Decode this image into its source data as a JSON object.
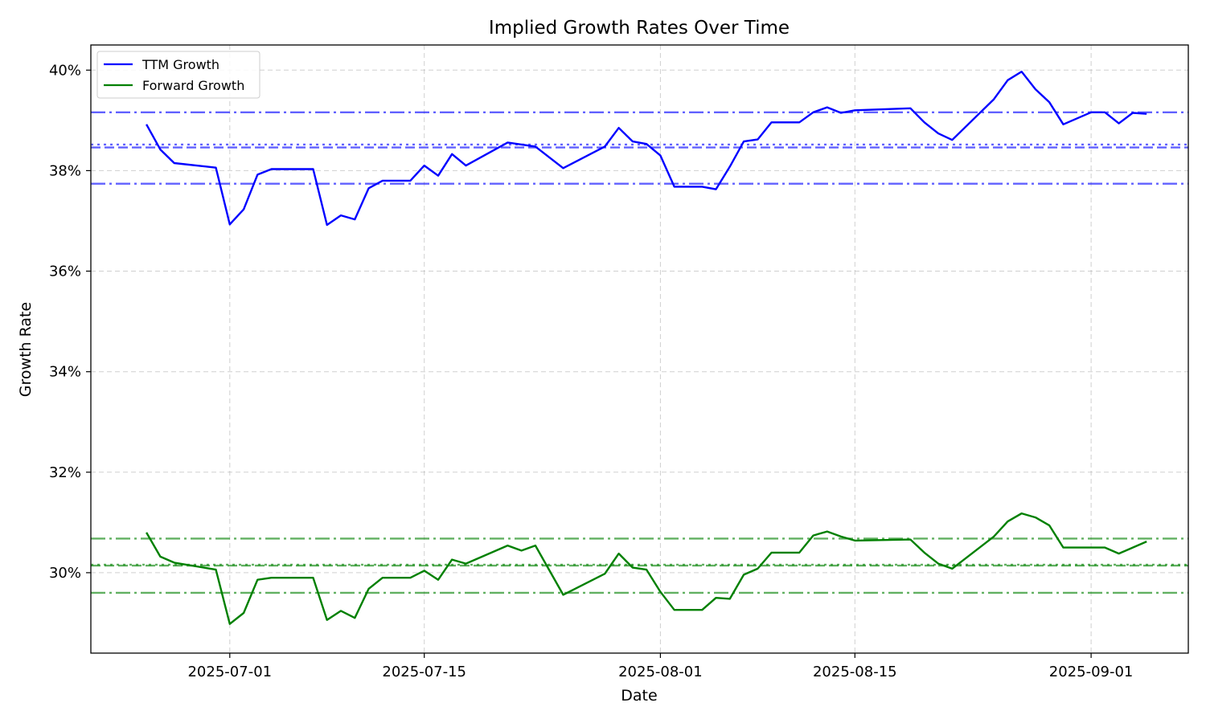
{
  "chart_data": {
    "type": "line",
    "title": "Implied Growth Rates Over Time",
    "xlabel": "Date",
    "ylabel": "Growth Rate",
    "xlim": [
      "2025-06-21",
      "2025-09-08"
    ],
    "ylim": [
      28.4,
      40.5
    ],
    "x_ticks": [
      "2025-07-01",
      "2025-07-15",
      "2025-08-01",
      "2025-08-15",
      "2025-09-01"
    ],
    "y_ticks": [
      30,
      32,
      34,
      36,
      38,
      40
    ],
    "y_tick_labels": [
      "30%",
      "32%",
      "34%",
      "36%",
      "38%",
      "40%"
    ],
    "grid": true,
    "legend_position": "top-left",
    "series": [
      {
        "name": "TTM Growth",
        "color": "#0000ff",
        "points": [
          [
            "2025-06-25",
            38.92
          ],
          [
            "2025-06-26",
            38.42
          ],
          [
            "2025-06-27",
            38.15
          ],
          [
            "2025-06-30",
            38.06
          ],
          [
            "2025-07-01",
            36.93
          ],
          [
            "2025-07-02",
            37.23
          ],
          [
            "2025-07-03",
            37.92
          ],
          [
            "2025-07-04",
            38.03
          ],
          [
            "2025-07-07",
            38.03
          ],
          [
            "2025-07-08",
            36.92
          ],
          [
            "2025-07-09",
            37.11
          ],
          [
            "2025-07-10",
            37.03
          ],
          [
            "2025-07-11",
            37.65
          ],
          [
            "2025-07-12",
            37.8
          ],
          [
            "2025-07-14",
            37.8
          ],
          [
            "2025-07-15",
            38.1
          ],
          [
            "2025-07-16",
            37.9
          ],
          [
            "2025-07-17",
            38.33
          ],
          [
            "2025-07-18",
            38.1
          ],
          [
            "2025-07-21",
            38.56
          ],
          [
            "2025-07-22",
            38.52
          ],
          [
            "2025-07-23",
            38.48
          ],
          [
            "2025-07-25",
            38.05
          ],
          [
            "2025-07-28",
            38.48
          ],
          [
            "2025-07-29",
            38.85
          ],
          [
            "2025-07-30",
            38.58
          ],
          [
            "2025-07-31",
            38.53
          ],
          [
            "2025-08-01",
            38.3
          ],
          [
            "2025-08-02",
            37.68
          ],
          [
            "2025-08-04",
            37.68
          ],
          [
            "2025-08-05",
            37.63
          ],
          [
            "2025-08-06",
            38.08
          ],
          [
            "2025-08-07",
            38.58
          ],
          [
            "2025-08-08",
            38.62
          ],
          [
            "2025-08-09",
            38.96
          ],
          [
            "2025-08-11",
            38.96
          ],
          [
            "2025-08-12",
            39.16
          ],
          [
            "2025-08-13",
            39.26
          ],
          [
            "2025-08-14",
            39.15
          ],
          [
            "2025-08-15",
            39.2
          ],
          [
            "2025-08-19",
            39.24
          ],
          [
            "2025-08-20",
            38.96
          ],
          [
            "2025-08-21",
            38.74
          ],
          [
            "2025-08-22",
            38.61
          ],
          [
            "2025-08-25",
            39.42
          ],
          [
            "2025-08-26",
            39.8
          ],
          [
            "2025-08-27",
            39.97
          ],
          [
            "2025-08-28",
            39.62
          ],
          [
            "2025-08-29",
            39.36
          ],
          [
            "2025-08-30",
            38.92
          ],
          [
            "2025-09-01",
            39.16
          ],
          [
            "2025-09-02",
            39.16
          ],
          [
            "2025-09-03",
            38.94
          ],
          [
            "2025-09-04",
            39.15
          ],
          [
            "2025-09-05",
            39.13
          ]
        ]
      },
      {
        "name": "Forward Growth",
        "color": "#008000",
        "points": [
          [
            "2025-06-25",
            30.8
          ],
          [
            "2025-06-26",
            30.32
          ],
          [
            "2025-06-27",
            30.2
          ],
          [
            "2025-06-30",
            30.06
          ],
          [
            "2025-07-01",
            28.98
          ],
          [
            "2025-07-02",
            29.2
          ],
          [
            "2025-07-03",
            29.86
          ],
          [
            "2025-07-04",
            29.9
          ],
          [
            "2025-07-07",
            29.9
          ],
          [
            "2025-07-08",
            29.06
          ],
          [
            "2025-07-09",
            29.24
          ],
          [
            "2025-07-10",
            29.1
          ],
          [
            "2025-07-11",
            29.68
          ],
          [
            "2025-07-12",
            29.9
          ],
          [
            "2025-07-14",
            29.9
          ],
          [
            "2025-07-15",
            30.04
          ],
          [
            "2025-07-16",
            29.86
          ],
          [
            "2025-07-17",
            30.26
          ],
          [
            "2025-07-18",
            30.18
          ],
          [
            "2025-07-21",
            30.54
          ],
          [
            "2025-07-22",
            30.44
          ],
          [
            "2025-07-23",
            30.54
          ],
          [
            "2025-07-25",
            29.56
          ],
          [
            "2025-07-28",
            29.98
          ],
          [
            "2025-07-29",
            30.38
          ],
          [
            "2025-07-30",
            30.1
          ],
          [
            "2025-07-31",
            30.06
          ],
          [
            "2025-08-01",
            29.62
          ],
          [
            "2025-08-02",
            29.26
          ],
          [
            "2025-08-04",
            29.26
          ],
          [
            "2025-08-05",
            29.5
          ],
          [
            "2025-08-06",
            29.48
          ],
          [
            "2025-08-07",
            29.96
          ],
          [
            "2025-08-08",
            30.08
          ],
          [
            "2025-08-09",
            30.4
          ],
          [
            "2025-08-11",
            30.4
          ],
          [
            "2025-08-12",
            30.74
          ],
          [
            "2025-08-13",
            30.82
          ],
          [
            "2025-08-14",
            30.72
          ],
          [
            "2025-08-15",
            30.64
          ],
          [
            "2025-08-19",
            30.66
          ],
          [
            "2025-08-20",
            30.4
          ],
          [
            "2025-08-21",
            30.18
          ],
          [
            "2025-08-22",
            30.08
          ],
          [
            "2025-08-25",
            30.72
          ],
          [
            "2025-08-26",
            31.02
          ],
          [
            "2025-08-27",
            31.18
          ],
          [
            "2025-08-28",
            31.1
          ],
          [
            "2025-08-29",
            30.94
          ],
          [
            "2025-08-30",
            30.5
          ],
          [
            "2025-09-01",
            30.5
          ],
          [
            "2025-09-02",
            30.5
          ],
          [
            "2025-09-03",
            30.38
          ],
          [
            "2025-09-04",
            30.5
          ],
          [
            "2025-09-05",
            30.62
          ]
        ]
      }
    ],
    "reference_lines": [
      {
        "series": "TTM Growth",
        "value": 39.16,
        "style": "dashdot",
        "color": "#0000ff"
      },
      {
        "series": "TTM Growth",
        "value": 38.52,
        "style": "dotted",
        "color": "#0000ff"
      },
      {
        "series": "TTM Growth",
        "value": 38.46,
        "style": "dashed",
        "color": "#0000ff"
      },
      {
        "series": "TTM Growth",
        "value": 37.74,
        "style": "dashdot",
        "color": "#0000ff"
      },
      {
        "series": "Forward Growth",
        "value": 30.68,
        "style": "dashdot",
        "color": "#008000"
      },
      {
        "series": "Forward Growth",
        "value": 30.16,
        "style": "dotted",
        "color": "#008000"
      },
      {
        "series": "Forward Growth",
        "value": 30.14,
        "style": "dashed",
        "color": "#008000"
      },
      {
        "series": "Forward Growth",
        "value": 29.6,
        "style": "dashdot",
        "color": "#008000"
      }
    ]
  }
}
